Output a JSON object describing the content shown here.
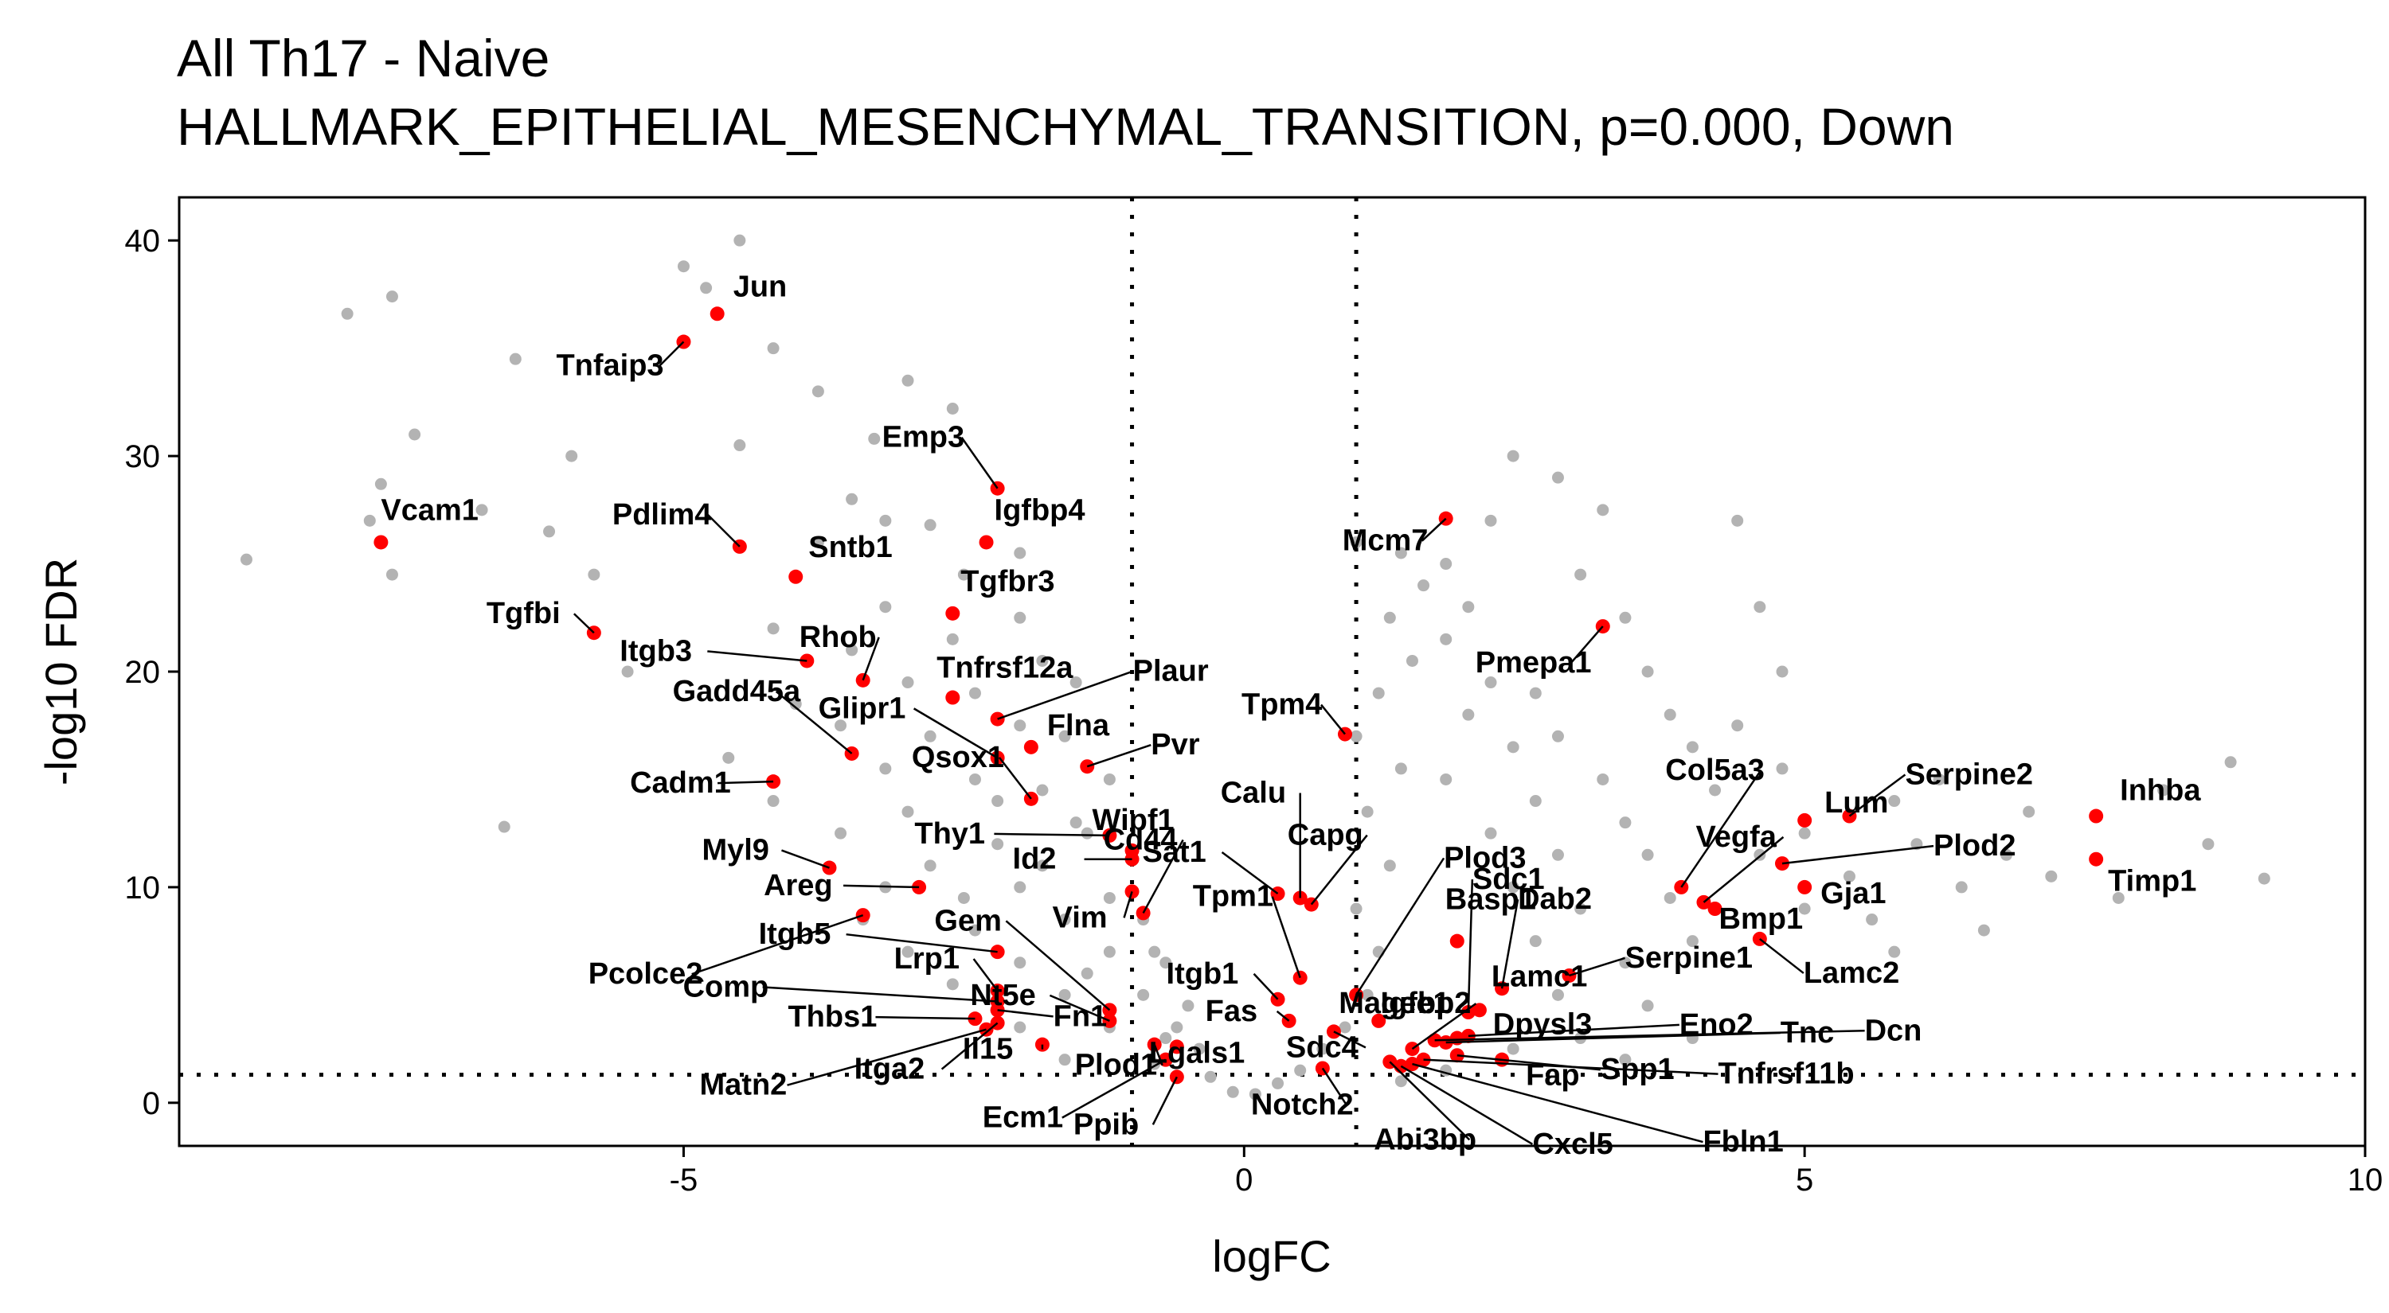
{
  "title": {
    "line1": "All Th17 - Naive",
    "line2": "HALLMARK_EPITHELIAL_MESENCHYMAL_TRANSITION, p=0.000, Down"
  },
  "colors": {
    "background_points": "#b3b3b3",
    "highlight_points": "#ff0000",
    "text": "#000000",
    "threshold_lines": "#000000"
  },
  "chart_data": {
    "type": "scatter",
    "xlabel": "logFC",
    "ylabel": "-log10 FDR",
    "xlim": [
      -9.5,
      10
    ],
    "ylim": [
      -2,
      42
    ],
    "xticks": [
      -5,
      0,
      5,
      10
    ],
    "yticks": [
      0,
      10,
      20,
      30,
      40
    ],
    "xtick_labels": [
      "-5",
      "0",
      "5",
      "10"
    ],
    "ytick_labels": [
      "0",
      "10",
      "20",
      "30",
      "40"
    ],
    "grid": false,
    "thresholds": {
      "logfc": [
        -1,
        1
      ],
      "fdr_log10": 1.3
    },
    "background_points": [
      [
        -8.9,
        25.2
      ],
      [
        -8.0,
        36.6
      ],
      [
        -7.6,
        37.4
      ],
      [
        -7.4,
        31.0
      ],
      [
        -7.7,
        28.7
      ],
      [
        -7.8,
        27.0
      ],
      [
        -7.6,
        24.5
      ],
      [
        -6.5,
        34.5
      ],
      [
        -6.0,
        30.0
      ],
      [
        -6.2,
        26.5
      ],
      [
        -6.8,
        27.5
      ],
      [
        -5.8,
        24.5
      ],
      [
        -6.6,
        12.8
      ],
      [
        -5.5,
        20.0
      ],
      [
        -5.0,
        38.8
      ],
      [
        -4.5,
        40.0
      ],
      [
        -4.2,
        35.0
      ],
      [
        -4.8,
        37.8
      ],
      [
        -3.8,
        33.0
      ],
      [
        -3.3,
        30.8
      ],
      [
        -3.0,
        33.5
      ],
      [
        -2.6,
        32.2
      ],
      [
        -3.5,
        28.0
      ],
      [
        -4.5,
        30.5
      ],
      [
        -3.2,
        27.0
      ],
      [
        -3.8,
        26.0
      ],
      [
        -2.8,
        26.8
      ],
      [
        -2.5,
        24.5
      ],
      [
        -2.0,
        25.5
      ],
      [
        -3.2,
        23.0
      ],
      [
        -4.2,
        22.0
      ],
      [
        -3.5,
        21.0
      ],
      [
        -2.6,
        21.5
      ],
      [
        -2.0,
        22.5
      ],
      [
        -1.8,
        20.5
      ],
      [
        -3.0,
        19.5
      ],
      [
        -4.0,
        18.5
      ],
      [
        -2.4,
        19.0
      ],
      [
        -1.5,
        19.5
      ],
      [
        -3.6,
        17.5
      ],
      [
        -2.8,
        17.0
      ],
      [
        -4.6,
        16.0
      ],
      [
        -2.0,
        17.5
      ],
      [
        -1.6,
        17.0
      ],
      [
        -3.2,
        15.5
      ],
      [
        -2.4,
        15.0
      ],
      [
        -4.2,
        14.0
      ],
      [
        -3.0,
        13.5
      ],
      [
        -1.8,
        14.5
      ],
      [
        -1.2,
        15.0
      ],
      [
        -3.6,
        12.5
      ],
      [
        -2.2,
        12.0
      ],
      [
        -1.4,
        12.5
      ],
      [
        -2.8,
        11.0
      ],
      [
        -1.0,
        11.5
      ],
      [
        -3.2,
        10.0
      ],
      [
        -2.0,
        10.0
      ],
      [
        -1.2,
        9.5
      ],
      [
        -3.4,
        8.5
      ],
      [
        -2.4,
        8.0
      ],
      [
        -1.6,
        8.5
      ],
      [
        -0.9,
        8.5
      ],
      [
        -3.0,
        7.0
      ],
      [
        -2.0,
        6.5
      ],
      [
        -1.2,
        7.0
      ],
      [
        -0.7,
        6.5
      ],
      [
        -2.6,
        5.5
      ],
      [
        -1.6,
        5.0
      ],
      [
        -0.9,
        5.0
      ],
      [
        -0.5,
        4.5
      ],
      [
        -2.0,
        3.5
      ],
      [
        -1.2,
        3.5
      ],
      [
        -0.7,
        3.0
      ],
      [
        -0.4,
        2.5
      ],
      [
        -1.6,
        2.0
      ],
      [
        -0.8,
        1.8
      ],
      [
        -0.3,
        1.2
      ],
      [
        -0.1,
        0.5
      ],
      [
        0.1,
        0.4
      ],
      [
        0.3,
        0.9
      ],
      [
        0.5,
        1.5
      ],
      [
        0.7,
        2.5
      ],
      [
        0.9,
        3.5
      ],
      [
        1.1,
        5.0
      ],
      [
        1.2,
        7.0
      ],
      [
        1.0,
        9.0
      ],
      [
        1.3,
        11.0
      ],
      [
        1.1,
        13.5
      ],
      [
        1.4,
        15.5
      ],
      [
        1.0,
        17.0
      ],
      [
        1.2,
        19.0
      ],
      [
        1.5,
        20.5
      ],
      [
        1.3,
        22.5
      ],
      [
        1.6,
        24.0
      ],
      [
        1.4,
        25.5
      ],
      [
        1.0,
        26.0
      ],
      [
        1.8,
        25.0
      ],
      [
        2.0,
        23.0
      ],
      [
        1.8,
        21.5
      ],
      [
        2.2,
        19.5
      ],
      [
        2.0,
        18.0
      ],
      [
        2.4,
        16.5
      ],
      [
        1.8,
        15.0
      ],
      [
        2.6,
        14.0
      ],
      [
        2.2,
        12.5
      ],
      [
        2.8,
        11.5
      ],
      [
        2.4,
        10.0
      ],
      [
        3.0,
        9.0
      ],
      [
        2.6,
        7.5
      ],
      [
        3.4,
        6.5
      ],
      [
        2.8,
        5.0
      ],
      [
        3.6,
        4.5
      ],
      [
        3.0,
        3.0
      ],
      [
        4.0,
        3.0
      ],
      [
        3.4,
        2.0
      ],
      [
        2.4,
        2.5
      ],
      [
        1.8,
        1.5
      ],
      [
        1.4,
        1.0
      ],
      [
        2.2,
        27.0
      ],
      [
        2.4,
        30.0
      ],
      [
        2.8,
        29.0
      ],
      [
        3.2,
        27.5
      ],
      [
        3.0,
        24.5
      ],
      [
        3.4,
        22.5
      ],
      [
        3.6,
        20.0
      ],
      [
        3.8,
        18.0
      ],
      [
        4.0,
        16.5
      ],
      [
        4.4,
        27.0
      ],
      [
        4.6,
        23.0
      ],
      [
        4.8,
        20.0
      ],
      [
        4.4,
        17.5
      ],
      [
        4.8,
        15.5
      ],
      [
        4.2,
        14.5
      ],
      [
        5.0,
        12.5
      ],
      [
        4.6,
        11.5
      ],
      [
        5.4,
        10.5
      ],
      [
        5.0,
        9.0
      ],
      [
        5.6,
        8.5
      ],
      [
        6.0,
        12.0
      ],
      [
        6.4,
        10.0
      ],
      [
        6.8,
        11.5
      ],
      [
        7.2,
        10.5
      ],
      [
        5.8,
        14.0
      ],
      [
        6.2,
        15.0
      ],
      [
        7.0,
        13.5
      ],
      [
        8.2,
        14.5
      ],
      [
        8.8,
        15.8
      ],
      [
        8.6,
        12.0
      ],
      [
        9.1,
        10.4
      ],
      [
        7.8,
        9.5
      ],
      [
        6.6,
        8.0
      ],
      [
        5.8,
        7.0
      ],
      [
        4.0,
        7.5
      ],
      [
        3.8,
        9.5
      ],
      [
        3.6,
        11.5
      ],
      [
        3.4,
        13.0
      ],
      [
        3.2,
        15.0
      ],
      [
        2.8,
        17.0
      ],
      [
        2.6,
        19.0
      ],
      [
        -1.5,
        13.0
      ],
      [
        -2.2,
        14.0
      ],
      [
        -1.8,
        11.0
      ],
      [
        -2.5,
        9.5
      ],
      [
        -0.8,
        7.0
      ],
      [
        -1.4,
        6.0
      ],
      [
        -0.6,
        3.5
      ]
    ],
    "highlighted_genes": [
      {
        "name": "Jun",
        "x": -4.7,
        "y": 36.6
      },
      {
        "name": "Tnfaip3",
        "x": -5.0,
        "y": 35.3
      },
      {
        "name": "Vcam1",
        "x": -7.7,
        "y": 26.0
      },
      {
        "name": "Pdlim4",
        "x": -4.5,
        "y": 25.8
      },
      {
        "name": "Sntb1",
        "x": -4.0,
        "y": 24.4
      },
      {
        "name": "Emp3",
        "x": -2.2,
        "y": 28.5
      },
      {
        "name": "Igfbp4",
        "x": -2.3,
        "y": 26.0
      },
      {
        "name": "Tgfbr3",
        "x": -2.6,
        "y": 22.7
      },
      {
        "name": "Tgfbi",
        "x": -5.8,
        "y": 21.8
      },
      {
        "name": "Itgb3",
        "x": -3.9,
        "y": 20.5
      },
      {
        "name": "Rhob",
        "x": -3.4,
        "y": 19.6
      },
      {
        "name": "Tnfrsf12a",
        "x": -2.6,
        "y": 18.8
      },
      {
        "name": "Plaur",
        "x": -2.2,
        "y": 17.8
      },
      {
        "name": "Gadd45a",
        "x": -3.5,
        "y": 16.2
      },
      {
        "name": "Glipr1",
        "x": -2.2,
        "y": 16.0
      },
      {
        "name": "Flna",
        "x": -1.9,
        "y": 16.5
      },
      {
        "name": "Pvr",
        "x": -1.4,
        "y": 15.6
      },
      {
        "name": "Cadm1",
        "x": -4.2,
        "y": 14.9
      },
      {
        "name": "Qsox1",
        "x": -1.9,
        "y": 14.1
      },
      {
        "name": "Wipf1",
        "x": -1.0,
        "y": 11.7
      },
      {
        "name": "Thy1",
        "x": -1.2,
        "y": 12.4
      },
      {
        "name": "Id2",
        "x": -1.0,
        "y": 11.3
      },
      {
        "name": "Myl9",
        "x": -3.7,
        "y": 10.9
      },
      {
        "name": "Areg",
        "x": -2.9,
        "y": 10.0
      },
      {
        "name": "Vim",
        "x": -1.0,
        "y": 9.8
      },
      {
        "name": "Pcolce2",
        "x": -3.4,
        "y": 8.7
      },
      {
        "name": "Itgb5",
        "x": -2.2,
        "y": 7.0
      },
      {
        "name": "Gem",
        "x": -1.2,
        "y": 4.3
      },
      {
        "name": "Cd44",
        "x": -0.9,
        "y": 8.8
      },
      {
        "name": "Lrp1",
        "x": -2.2,
        "y": 5.2
      },
      {
        "name": "Nt5e",
        "x": -1.2,
        "y": 3.8
      },
      {
        "name": "Comp",
        "x": -2.2,
        "y": 4.7
      },
      {
        "name": "Thbs1",
        "x": -2.4,
        "y": 3.9
      },
      {
        "name": "Fn1",
        "x": -2.2,
        "y": 4.3
      },
      {
        "name": "Matn2",
        "x": -2.3,
        "y": 3.4
      },
      {
        "name": "Itga2",
        "x": -2.2,
        "y": 3.7
      },
      {
        "name": "Il15",
        "x": -1.8,
        "y": 2.7
      },
      {
        "name": "Plod1",
        "x": -0.8,
        "y": 2.7
      },
      {
        "name": "Lgals1",
        "x": -0.6,
        "y": 2.6
      },
      {
        "name": "Ecm1",
        "x": -0.7,
        "y": 2.0
      },
      {
        "name": "Ppib",
        "x": -0.6,
        "y": 1.2
      },
      {
        "name": "Sat1",
        "x": 0.3,
        "y": 9.7
      },
      {
        "name": "Calu",
        "x": 0.5,
        "y": 9.5
      },
      {
        "name": "Capg",
        "x": 0.6,
        "y": 9.2
      },
      {
        "name": "Tpm1",
        "x": 0.5,
        "y": 5.8
      },
      {
        "name": "Tpm4",
        "x": 0.9,
        "y": 17.1
      },
      {
        "name": "Mcm7",
        "x": 1.8,
        "y": 27.1
      },
      {
        "name": "Pmepa1",
        "x": 3.2,
        "y": 22.1
      },
      {
        "name": "Plod3",
        "x": 1.0,
        "y": 5.0
      },
      {
        "name": "Magee1",
        "x": 1.2,
        "y": 3.8
      },
      {
        "name": "Itgb1",
        "x": 0.3,
        "y": 4.8
      },
      {
        "name": "Fas",
        "x": 0.4,
        "y": 3.8
      },
      {
        "name": "Sdc4",
        "x": 0.8,
        "y": 3.3
      },
      {
        "name": "Notch2",
        "x": 0.7,
        "y": 1.6
      },
      {
        "name": "Igfbp2",
        "x": 1.5,
        "y": 2.5
      },
      {
        "name": "Basp1",
        "x": 1.9,
        "y": 7.5
      },
      {
        "name": "Lamc1",
        "x": 2.1,
        "y": 4.3
      },
      {
        "name": "Sdc1",
        "x": 2.0,
        "y": 4.2
      },
      {
        "name": "Dab2",
        "x": 2.3,
        "y": 5.3
      },
      {
        "name": "Col5a3",
        "x": 3.9,
        "y": 10.0
      },
      {
        "name": "Vegfa",
        "x": 4.1,
        "y": 9.3
      },
      {
        "name": "Bmp1",
        "x": 4.2,
        "y": 9.0
      },
      {
        "name": "Lum",
        "x": 5.0,
        "y": 13.1
      },
      {
        "name": "Serpine2",
        "x": 5.4,
        "y": 13.3
      },
      {
        "name": "Plod2",
        "x": 4.8,
        "y": 11.1
      },
      {
        "name": "Gja1",
        "x": 5.0,
        "y": 10.0
      },
      {
        "name": "Inhba",
        "x": 7.6,
        "y": 13.3
      },
      {
        "name": "Timp1",
        "x": 7.6,
        "y": 11.3
      },
      {
        "name": "Serpine1",
        "x": 2.9,
        "y": 5.9
      },
      {
        "name": "Lamc2",
        "x": 4.6,
        "y": 7.6
      },
      {
        "name": "Dpysl3",
        "x": 1.9,
        "y": 3.0
      },
      {
        "name": "Eno2",
        "x": 2.0,
        "y": 3.1
      },
      {
        "name": "Tnc",
        "x": 1.8,
        "y": 2.8
      },
      {
        "name": "Dcn",
        "x": 1.7,
        "y": 2.9
      },
      {
        "name": "Fap",
        "x": 2.3,
        "y": 2.0
      },
      {
        "name": "Spp1",
        "x": 1.9,
        "y": 2.2
      },
      {
        "name": "Tnfrsf11b",
        "x": 1.6,
        "y": 2.0
      },
      {
        "name": "Abi3bp",
        "x": 1.3,
        "y": 1.9
      },
      {
        "name": "Cxcl5",
        "x": 1.4,
        "y": 1.7
      },
      {
        "name": "Fbln1",
        "x": 1.5,
        "y": 1.8
      }
    ]
  }
}
